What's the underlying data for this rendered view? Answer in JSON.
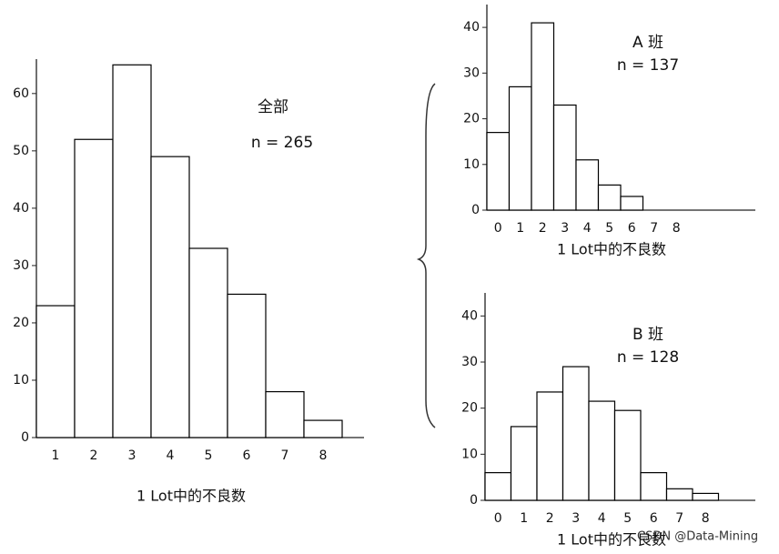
{
  "chart_data": [
    {
      "type": "bar",
      "annotations": [
        "全部",
        "n = 265"
      ],
      "xlabel": "1 Lot中的不良数",
      "categories": [
        "1",
        "2",
        "3",
        "4",
        "5",
        "6",
        "7",
        "8"
      ],
      "values": [
        23,
        52,
        65,
        49,
        33,
        25,
        8,
        3
      ],
      "color": "#ffffff",
      "edgecolor": "#000000",
      "ylim": [
        0,
        66
      ],
      "yticks": [
        0,
        10,
        20,
        30,
        40,
        50,
        60
      ]
    },
    {
      "type": "bar",
      "annotations": [
        "A 班",
        "n = 137"
      ],
      "xlabel": "1 Lot中的不良数",
      "categories": [
        "0",
        "1",
        "2",
        "3",
        "4",
        "5",
        "6",
        "7",
        "8"
      ],
      "values": [
        17,
        27,
        41,
        23,
        11,
        5.5,
        3,
        0,
        0
      ],
      "color": "#ffffff",
      "edgecolor": "#000000",
      "ylim": [
        0,
        45
      ],
      "yticks": [
        0,
        10,
        20,
        30,
        40
      ]
    },
    {
      "type": "bar",
      "annotations": [
        "B 班",
        "n = 128"
      ],
      "xlabel": "1 Lot中的不良数",
      "categories": [
        "0",
        "1",
        "2",
        "3",
        "4",
        "5",
        "6",
        "7",
        "8"
      ],
      "values": [
        6,
        16,
        23.5,
        29,
        21.5,
        19.5,
        6,
        2.5,
        1.5
      ],
      "color": "#ffffff",
      "edgecolor": "#000000",
      "ylim": [
        0,
        45
      ],
      "yticks": [
        0,
        10,
        20,
        30,
        40
      ]
    }
  ],
  "watermark": "CSDN @Data-Mining"
}
